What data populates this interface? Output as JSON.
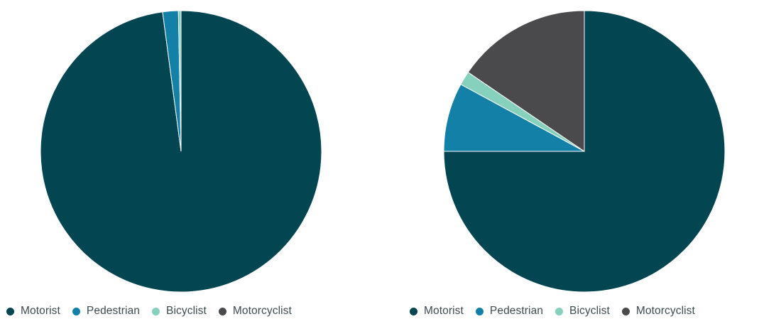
{
  "colors": {
    "Motorist": "#034652",
    "Pedestrian": "#1380a8",
    "Bicyclist": "#86d1bd",
    "Motorcyclist": "#4a4a4c"
  },
  "chart_data": [
    {
      "type": "pie",
      "categories": [
        "Motorist",
        "Pedestrian",
        "Bicyclist",
        "Motorcyclist"
      ],
      "values": [
        97.9,
        1.8,
        0.3,
        0.0
      ],
      "legend": [
        "Motorist",
        "Pedestrian",
        "Bicyclist",
        "Motorcyclist"
      ],
      "legend_position": "bottom",
      "start_angle": "top",
      "direction": "clockwise"
    },
    {
      "type": "pie",
      "categories": [
        "Motorist",
        "Pedestrian",
        "Bicyclist",
        "Motorcyclist"
      ],
      "values": [
        75.0,
        7.9,
        1.6,
        15.5
      ],
      "legend": [
        "Motorist",
        "Pedestrian",
        "Bicyclist",
        "Motorcyclist"
      ],
      "legend_position": "bottom",
      "start_angle": "top",
      "direction": "clockwise"
    }
  ]
}
